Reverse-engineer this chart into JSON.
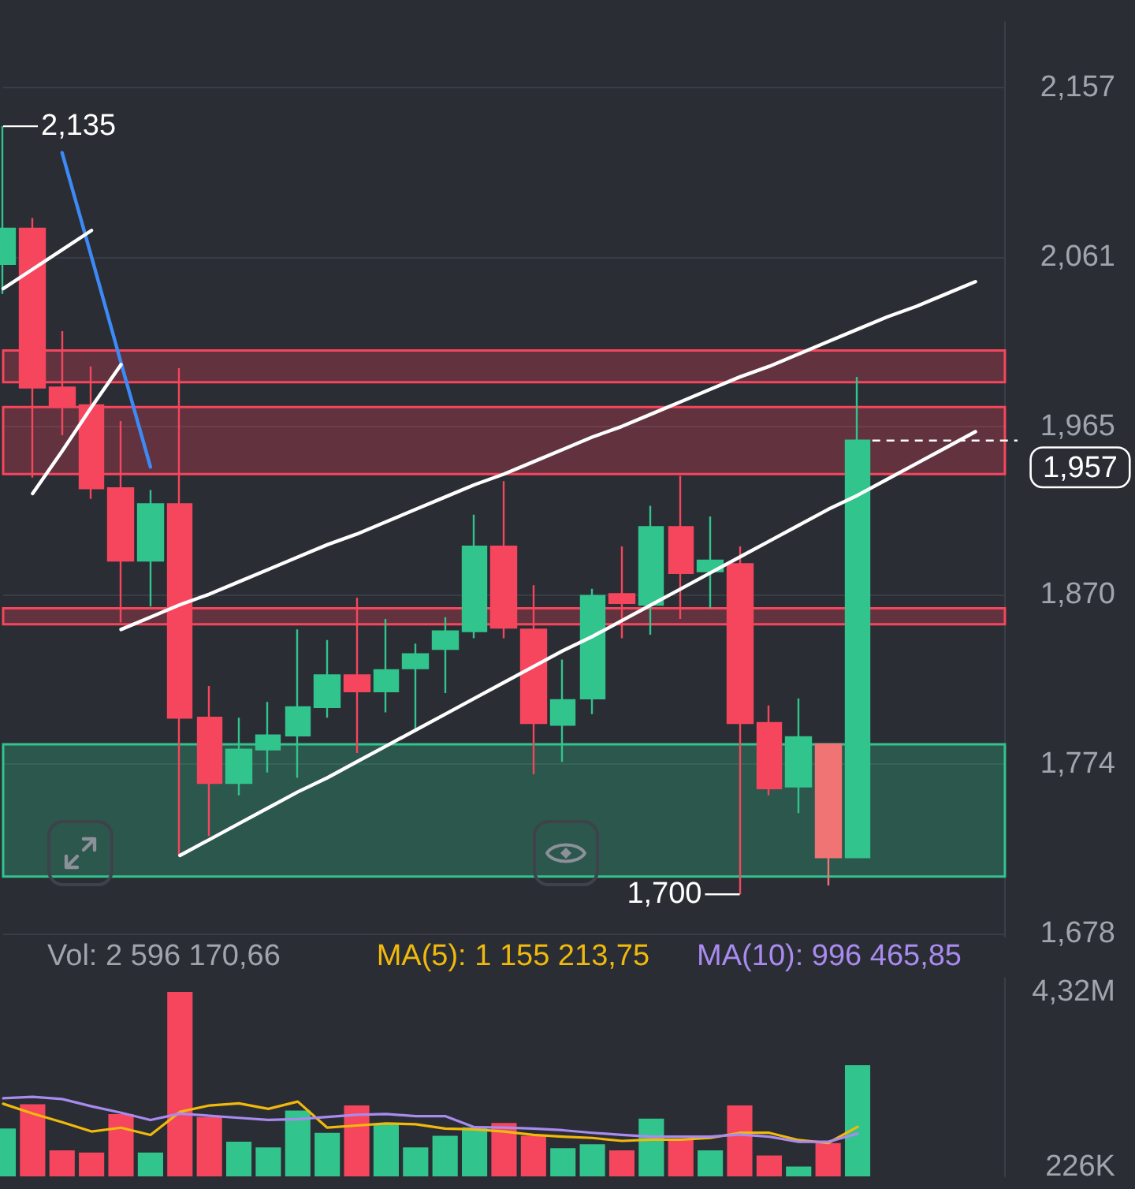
{
  "chart_data": [
    {
      "type": "candlestick",
      "categories": [
        null,
        null,
        null,
        null,
        null,
        null,
        null,
        null,
        null,
        null,
        null,
        null,
        null,
        null,
        null,
        null,
        null,
        null,
        null,
        null,
        null,
        null,
        null,
        null,
        null,
        null,
        null,
        null,
        null,
        null,
        null,
        null,
        null,
        null,
        null
      ],
      "ohlc": [
        [
          2057,
          2135,
          2040,
          2077
        ],
        [
          2077,
          2083,
          1936,
          1987
        ],
        [
          1987,
          2019,
          1960,
          1977
        ],
        [
          1977,
          1999,
          1924,
          1930
        ],
        [
          1930,
          1968,
          1854,
          1889
        ],
        [
          1889,
          1929,
          1863,
          1921
        ],
        [
          1921,
          1998,
          1722,
          1800
        ],
        [
          1800,
          1818,
          1733,
          1763
        ],
        [
          1763,
          1800,
          1756,
          1782
        ],
        [
          1782,
          1809,
          1769,
          1790
        ],
        [
          1790,
          1850,
          1766,
          1806
        ],
        [
          1806,
          1844,
          1800,
          1824
        ],
        [
          1824,
          1868,
          1780,
          1815
        ],
        [
          1815,
          1856,
          1803,
          1827
        ],
        [
          1828,
          1842,
          1793,
          1836
        ],
        [
          1839,
          1857,
          1814,
          1849
        ],
        [
          1849,
          1915,
          1845,
          1897
        ],
        [
          1897,
          1934,
          1845,
          1851
        ],
        [
          1850,
          1875,
          1768,
          1797
        ],
        [
          1796,
          1833,
          1775,
          1810
        ],
        [
          1811,
          1873,
          1802,
          1869
        ],
        [
          1870,
          1897,
          1845,
          1865
        ],
        [
          1864,
          1920,
          1847,
          1908
        ],
        [
          1908,
          1937,
          1856,
          1882
        ],
        [
          1883,
          1914,
          1862,
          1889
        ],
        [
          1887,
          1897,
          1700,
          1797
        ],
        [
          1797,
          1807,
          1756,
          1760
        ],
        [
          1761,
          1811,
          1746,
          1789
        ],
        [
          1785,
          1785,
          1705,
          1721
        ],
        [
          1721,
          1993,
          1721,
          1957
        ],
        null,
        null,
        null,
        null,
        null
      ],
      "colors": [
        "#32c48d",
        "#f6465d",
        "#f6465d",
        "#f6465d",
        "#f6465d",
        "#32c48d",
        "#f6465d",
        "#f6465d",
        "#32c48d",
        "#32c48d",
        "#32c48d",
        "#32c48d",
        "#f6465d",
        "#32c48d",
        "#32c48d",
        "#32c48d",
        "#32c48d",
        "#f6465d",
        "#f6465d",
        "#32c48d",
        "#32c48d",
        "#f6465d",
        "#32c48d",
        "#f6465d",
        "#32c48d",
        "#f6465d",
        "#f6465d",
        "#32c48d",
        "#f07474",
        "#32c48d",
        null,
        null,
        null,
        null,
        null
      ],
      "series": [
        {
          "type": "line",
          "color": "#ffffff",
          "values": [
            null,
            null,
            null,
            null,
            1850,
            1857,
            1864,
            1870,
            1877,
            1884,
            1891,
            1898,
            1904,
            1911,
            1918,
            1925,
            1932,
            1938,
            1945,
            1952,
            1959,
            1965,
            1972,
            1979,
            1986,
            1993,
            1999,
            2006,
            2013,
            2020,
            2027,
            2033,
            2040,
            2047,
            null
          ]
        },
        {
          "type": "line",
          "color": "#ffffff",
          "values": [
            null,
            null,
            null,
            null,
            null,
            null,
            1722,
            1731,
            1740,
            1749,
            1758,
            1766,
            1775,
            1784,
            1793,
            1802,
            1811,
            1820,
            1829,
            1838,
            1846,
            1855,
            1864,
            1873,
            1882,
            1891,
            1900,
            1909,
            1918,
            1926,
            1935,
            1944,
            1953,
            1962,
            null
          ]
        },
        {
          "type": "line",
          "color": "#3d8af7",
          "values": [
            null,
            null,
            2120,
            2061,
            2001,
            1942,
            null,
            null,
            null,
            null,
            null,
            null,
            null,
            null,
            null,
            null,
            null,
            null,
            null,
            null,
            null,
            null,
            null,
            null,
            null,
            null,
            null,
            null,
            null,
            null,
            null,
            null,
            null,
            null,
            null
          ]
        },
        {
          "type": "line",
          "color": "#ffffff",
          "values": [
            2043,
            2054,
            2065,
            2076,
            null,
            null,
            null,
            null,
            null,
            null,
            null,
            null,
            null,
            null,
            null,
            null,
            null,
            null,
            null,
            null,
            null,
            null,
            null,
            null,
            null,
            null,
            null,
            null,
            null,
            null,
            null,
            null,
            null,
            null,
            null
          ]
        },
        {
          "type": "line",
          "color": "#ffffff",
          "values": [
            null,
            1927,
            1951,
            1976,
            2000,
            null,
            null,
            null,
            null,
            null,
            null,
            null,
            null,
            null,
            null,
            null,
            null,
            null,
            null,
            null,
            null,
            null,
            null,
            null,
            null,
            null,
            null,
            null,
            null,
            null,
            null,
            null,
            null,
            null,
            null
          ]
        }
      ],
      "bands": [
        {
          "axis": "y",
          "from": 1990,
          "to": 2008,
          "color": "#f6465d"
        },
        {
          "axis": "y",
          "from": 1938,
          "to": 1976,
          "color": "#f6465d"
        },
        {
          "axis": "y",
          "from": 1853,
          "to": 1862,
          "color": "#f6465d"
        },
        {
          "axis": "y",
          "from": 1710,
          "to": 1785,
          "color": "#32c48d"
        }
      ],
      "ref_lines": [
        {
          "axis": "y",
          "value": 1957,
          "label": "1,957",
          "color": "#ffffff",
          "line_style": "dashed"
        }
      ],
      "annotations": [
        "2,135",
        "1,700"
      ],
      "ylim": [
        1676,
        2194
      ],
      "yticks": [
        {
          "value": 2157,
          "label": "2,157"
        },
        {
          "value": 2061,
          "label": "2,061"
        },
        {
          "value": 1965,
          "label": "1,965"
        },
        {
          "value": 1870,
          "label": "1,870"
        },
        {
          "value": 1774,
          "label": "1,774"
        },
        {
          "value": 1678,
          "label": "1,678"
        }
      ],
      "grid": "y",
      "tick_labels": "y",
      "marker": "none"
    },
    {
      "type": "bar",
      "categories": [
        null,
        null,
        null,
        null,
        null,
        null,
        null,
        null,
        null,
        null,
        null,
        null,
        null,
        null,
        null,
        null,
        null,
        null,
        null,
        null,
        null,
        null,
        null,
        null,
        null,
        null,
        null,
        null,
        null,
        null,
        null,
        null,
        null,
        null,
        null
      ],
      "series": [
        {
          "type": "bar",
          "colors": [
            "#32c48d",
            "#f6465d",
            "#f6465d",
            "#f6465d",
            "#f6465d",
            "#32c48d",
            "#f6465d",
            "#f6465d",
            "#32c48d",
            "#32c48d",
            "#32c48d",
            "#32c48d",
            "#f6465d",
            "#32c48d",
            "#32c48d",
            "#32c48d",
            "#32c48d",
            "#f6465d",
            "#f6465d",
            "#32c48d",
            "#32c48d",
            "#f6465d",
            "#32c48d",
            "#f6465d",
            "#32c48d",
            "#f6465d",
            "#f6465d",
            "#32c48d",
            "#f6465d",
            "#32c48d",
            null,
            null,
            null,
            null,
            null
          ],
          "values": [
            1120000,
            1690000,
            610000,
            560000,
            1460000,
            560000,
            4320000,
            1390000,
            810000,
            680000,
            1540000,
            1020000,
            1660000,
            1220000,
            680000,
            950000,
            1150000,
            1250000,
            950000,
            660000,
            750000,
            610000,
            1350000,
            880000,
            610000,
            1660000,
            490000,
            230000,
            780000,
            2600000,
            null,
            null,
            null,
            null,
            null
          ]
        },
        {
          "type": "line",
          "name": "MA(5): 1 155 213,75",
          "color": "#f0b90b",
          "values": [
            1700000,
            1470000,
            1270000,
            1050000,
            1140000,
            970000,
            1510000,
            1660000,
            1710000,
            1580000,
            1750000,
            1140000,
            1190000,
            1240000,
            1220000,
            1120000,
            1100000,
            1050000,
            970000,
            930000,
            900000,
            830000,
            860000,
            860000,
            900000,
            1020000,
            1020000,
            850000,
            780000,
            1160000,
            null,
            null,
            null,
            null,
            null
          ]
        },
        {
          "type": "line",
          "name": "MA(10): 996 465,85",
          "color": "#a98bef",
          "values": [
            1830000,
            1860000,
            1810000,
            1640000,
            1490000,
            1320000,
            1470000,
            1420000,
            1370000,
            1320000,
            1340000,
            1390000,
            1440000,
            1460000,
            1410000,
            1410000,
            1150000,
            1140000,
            1120000,
            1080000,
            1020000,
            970000,
            930000,
            930000,
            930000,
            980000,
            930000,
            810000,
            810000,
            1000000,
            null,
            null,
            null,
            null,
            null
          ]
        }
      ],
      "annotations": [
        "Vol: 2 596 170,66"
      ],
      "ylim": [
        0,
        4650000
      ],
      "yticks": [
        {
          "value": 226000,
          "label": "226K"
        },
        {
          "value": 4320000,
          "label": "4,32M"
        }
      ],
      "grid": false,
      "tick_labels": "y",
      "legend": "top right",
      "marker": "none"
    }
  ]
}
